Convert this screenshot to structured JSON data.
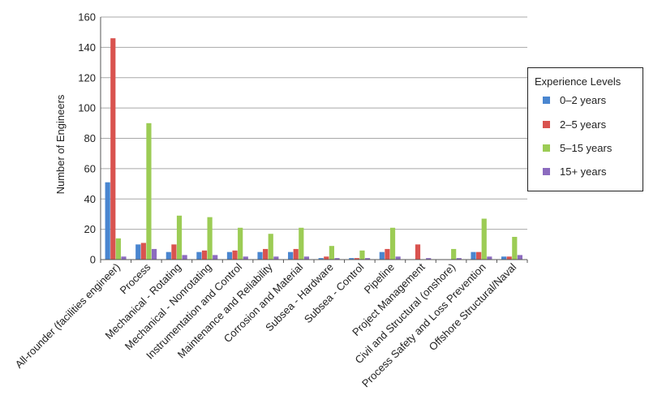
{
  "chart_data": {
    "type": "bar",
    "ylabel": "Number of Engineers",
    "xlabel": "",
    "ylim": [
      0,
      160
    ],
    "yticks": [
      0,
      20,
      40,
      60,
      80,
      100,
      120,
      140,
      160
    ],
    "grid": true,
    "legend_title": "Experience Levels",
    "legend_position": "right",
    "categories": [
      "All-rounder (facilities engineer)",
      "Process",
      "Mechanical - Rotating",
      "Mechanical - Nonrotating",
      "Instrumentation and Control",
      "Maintenance and Reliability",
      "Corrosion and Material",
      "Subsea - Hardware",
      "Subsea - Control",
      "Pipeline",
      "Project Management",
      "Civil and Structural (onshore)",
      "Process Safety and Loss Prevention",
      "Offshore Structural/Naval"
    ],
    "series": [
      {
        "name": "0–2 years",
        "color": "#4a86d0",
        "values": [
          51,
          10,
          5,
          5,
          5,
          5,
          5,
          1,
          1,
          5,
          0,
          0,
          5,
          2
        ]
      },
      {
        "name": "2–5 years",
        "color": "#d9534f",
        "values": [
          146,
          11,
          10,
          6,
          6,
          7,
          7,
          2,
          1,
          7,
          10,
          0,
          5,
          2
        ]
      },
      {
        "name": "5–15 years",
        "color": "#9ccc55",
        "values": [
          14,
          90,
          29,
          28,
          21,
          17,
          21,
          9,
          6,
          21,
          0,
          7,
          27,
          15
        ]
      },
      {
        "name": "15+ years",
        "color": "#8c6bbf",
        "values": [
          2,
          7,
          3,
          3,
          2,
          2,
          2,
          1,
          1,
          2,
          1,
          1,
          2,
          3
        ]
      }
    ]
  }
}
